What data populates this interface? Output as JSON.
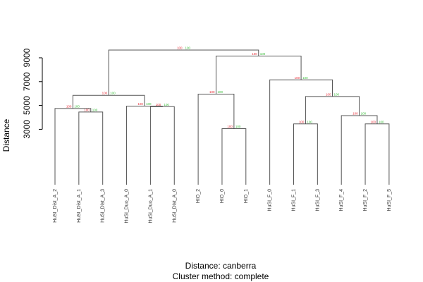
{
  "chart_data": {
    "type": "dendrogram",
    "ylabel": "Distance",
    "yticks": [
      3000,
      5000,
      7000,
      9000
    ],
    "ylim": [
      1900,
      10300
    ],
    "distance_text": "Distance:  canberra",
    "cluster_text": "Cluster method: complete",
    "colors": {
      "branch": "#555555",
      "au": "#e8303a",
      "bp": "#3dbf3d"
    },
    "pv_label_text": {
      "au": "100",
      "bp": "100"
    },
    "leaves": [
      "HuSI_Dist_A_2",
      "HuSI_Dist_A_1",
      "HuSI_Dist_A_3",
      "HuSI_Duo_A_0",
      "HuSI_Duo_A_1",
      "HuSI_Dist_A_0",
      "HIO_2",
      "HIO_0",
      "HIO_1",
      "HuSI_F_0",
      "HuSI_F_1",
      "HuSI_F_3",
      "HuSI_F_4",
      "HuSI_F_2",
      "HuSI_F_5"
    ],
    "merges": [
      {
        "left": "L1",
        "right": "L2",
        "height": 4450
      },
      {
        "left": "L0",
        "right": "N1",
        "height": 4750
      },
      {
        "left": "L4",
        "right": "L5",
        "height": 4900
      },
      {
        "left": "L3",
        "right": "N3",
        "height": 4950
      },
      {
        "left": "N2",
        "right": "N4",
        "height": 5850
      },
      {
        "left": "L7",
        "right": "L8",
        "height": 3050
      },
      {
        "left": "L6",
        "right": "N6",
        "height": 5950
      },
      {
        "left": "L10",
        "right": "L11",
        "height": 3450
      },
      {
        "left": "L13",
        "right": "L14",
        "height": 3450
      },
      {
        "left": "L12",
        "right": "N9",
        "height": 4150
      },
      {
        "left": "N8",
        "right": "N10",
        "height": 5750
      },
      {
        "left": "L9",
        "right": "N11",
        "height": 7150
      },
      {
        "left": "N7",
        "right": "N12",
        "height": 9150
      },
      {
        "left": "N5",
        "right": "N13",
        "height": 9650
      }
    ]
  }
}
